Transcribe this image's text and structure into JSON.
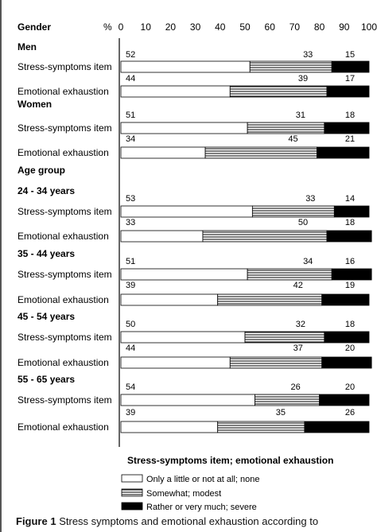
{
  "figure": {
    "gender_header": "Gender",
    "percent_label": "%",
    "caption_label": "Figure 1",
    "caption_text": "Stress symptoms and emotional exhaustion according to"
  },
  "legend": {
    "title": "Stress-symptoms item; emotional exhaustion",
    "items": [
      {
        "key": "low",
        "label": "Only a little or not at all; none",
        "fill": "#ffffff"
      },
      {
        "key": "mid",
        "label": "Somewhat; modest",
        "fill": "hatch"
      },
      {
        "key": "high",
        "label": "Rather or very much; severe",
        "fill": "#000000"
      }
    ]
  },
  "chart_data": {
    "type": "bar",
    "stacked": true,
    "orientation": "horizontal",
    "xlim": [
      0,
      100
    ],
    "x_ticks": [
      "0",
      "10",
      "20",
      "30",
      "40",
      "50",
      "60",
      "70",
      "80",
      "90",
      "100"
    ],
    "grid": false,
    "series_names": [
      "Only a little or not at all; none",
      "Somewhat; modest",
      "Rather or very much; severe"
    ],
    "groups": [
      {
        "label": "Men",
        "rows": [
          {
            "label": "Stress-symptoms item",
            "values": [
              52,
              33,
              15
            ]
          },
          {
            "label": "Emotional exhaustion",
            "values": [
              44,
              39,
              17
            ]
          }
        ]
      },
      {
        "label": "Women",
        "rows": [
          {
            "label": "Stress-symptoms item",
            "values": [
              51,
              31,
              18
            ]
          },
          {
            "label": "Emotional exhaustion",
            "values": [
              34,
              45,
              21
            ]
          }
        ]
      },
      {
        "label": "Age group",
        "rows": []
      },
      {
        "label": "24 - 34 years",
        "rows": [
          {
            "label": "Stress-symptoms item",
            "values": [
              53,
              33,
              14
            ]
          },
          {
            "label": "Emotional exhaustion",
            "values": [
              33,
              50,
              18
            ]
          }
        ]
      },
      {
        "label": "35 - 44 years",
        "rows": [
          {
            "label": "Stress-symptoms item",
            "values": [
              51,
              34,
              16
            ]
          },
          {
            "label": "Emotional exhaustion",
            "values": [
              39,
              42,
              19
            ]
          }
        ]
      },
      {
        "label": "45 - 54 years",
        "rows": [
          {
            "label": "Stress-symptoms item",
            "values": [
              50,
              32,
              18
            ]
          },
          {
            "label": "Emotional exhaustion",
            "values": [
              44,
              37,
              20
            ]
          }
        ]
      },
      {
        "label": "55 - 65 years",
        "rows": [
          {
            "label": "Stress-symptoms item",
            "values": [
              54,
              26,
              20
            ]
          },
          {
            "label": "Emotional exhaustion",
            "values": [
              39,
              35,
              26
            ]
          }
        ]
      }
    ]
  }
}
